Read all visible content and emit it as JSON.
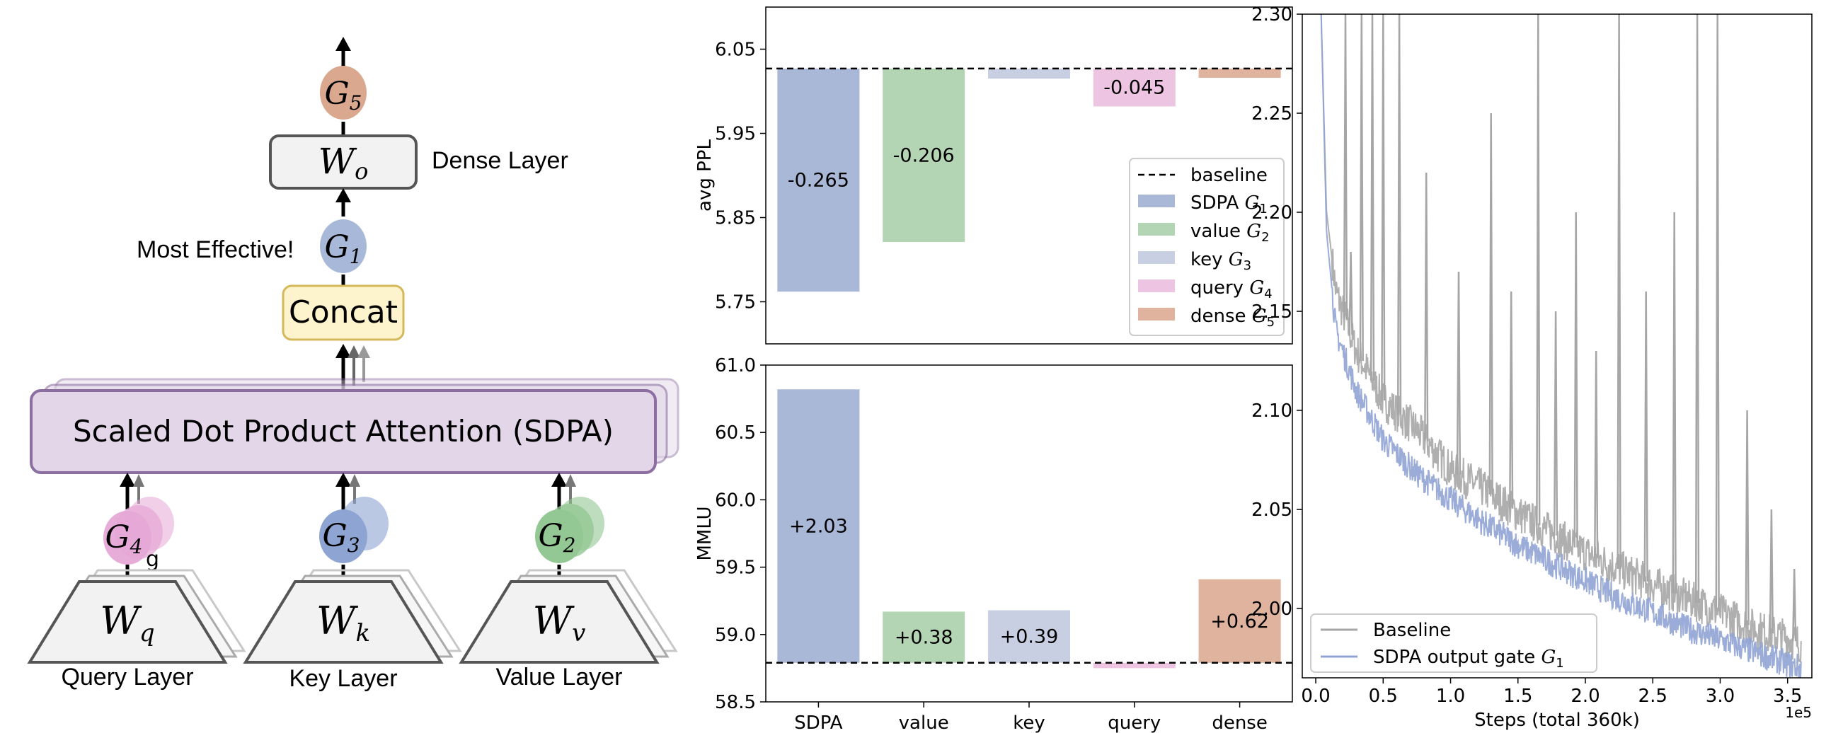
{
  "diagram": {
    "dense_layer_label": "Dense Layer",
    "most_effective_label": "Most Effective!",
    "concat_label": "Concat",
    "sdpa_label": "Scaled Dot Product Attention (SDPA)",
    "query_layer_label": "Query Layer",
    "key_layer_label": "Key Layer",
    "value_layer_label": "Value Layer",
    "stray_label": "g",
    "gates": [
      {
        "symbol": "G",
        "sub": "5",
        "color": "#d9a88e"
      },
      {
        "symbol": "G",
        "sub": "1",
        "color": "#a8b8d8"
      },
      {
        "symbol": "G",
        "sub": "4",
        "color": "#e6a8d6"
      },
      {
        "symbol": "G",
        "sub": "3",
        "color": "#8ea4d2"
      },
      {
        "symbol": "G",
        "sub": "2",
        "color": "#93c793"
      }
    ],
    "weights": [
      {
        "symbol": "W",
        "sub": "o"
      },
      {
        "symbol": "W",
        "sub": "q"
      },
      {
        "symbol": "W",
        "sub": "k"
      },
      {
        "symbol": "W",
        "sub": "v"
      }
    ],
    "colors": {
      "concat_fill": "#fdf3cc",
      "concat_stroke": "#d4b85a",
      "sdpa_fill": "#e2d6e8",
      "sdpa_stroke": "#8c6fa0",
      "layer_fill": "#f2f2f2",
      "layer_stroke": "#555555"
    }
  },
  "chart_data": [
    {
      "type": "bar",
      "categories": [
        "SDPA",
        "value",
        "key",
        "query",
        "dense"
      ],
      "baseline": 6.027,
      "deltas": [
        -0.265,
        -0.206,
        -0.012,
        -0.045,
        -0.011
      ],
      "labels": [
        "-0.265",
        "-0.206",
        "",
        "-0.045",
        ""
      ],
      "colors": [
        "#a9b8d7",
        "#b3d5b3",
        "#c9cfe3",
        "#edc5e3",
        "#dfb39e"
      ],
      "ylabel": "avg PPL",
      "ylim": [
        5.7,
        6.1
      ],
      "yticks": [
        "5.75",
        "5.85",
        "5.95",
        "6.05"
      ],
      "ytick_values": [
        5.75,
        5.85,
        5.95,
        6.05
      ],
      "legend": {
        "position": "center-right",
        "items": [
          {
            "name": "baseline",
            "type": "dashed"
          },
          {
            "name": "SDPA",
            "sub": "1",
            "color": "#a9b8d7"
          },
          {
            "name": "value",
            "sub": "2",
            "color": "#b3d5b3"
          },
          {
            "name": "key",
            "sub": "3",
            "color": "#c9cfe3"
          },
          {
            "name": "query",
            "sub": "4",
            "color": "#edc5e3"
          },
          {
            "name": "dense",
            "sub": "5",
            "color": "#dfb39e"
          }
        ]
      }
    },
    {
      "type": "bar",
      "categories": [
        "SDPA",
        "value",
        "key",
        "query",
        "dense"
      ],
      "baseline": 58.79,
      "deltas": [
        2.03,
        0.38,
        0.39,
        -0.04,
        0.62
      ],
      "labels": [
        "+2.03",
        "+0.38",
        "+0.39",
        "",
        "+0.62"
      ],
      "colors": [
        "#a9b8d7",
        "#b3d5b3",
        "#c9cfe3",
        "#edc5e3",
        "#dfb39e"
      ],
      "ylabel": "MMLU",
      "ylim": [
        58.5,
        61.0
      ],
      "yticks": [
        "58.5",
        "59.0",
        "59.5",
        "60.0",
        "60.5",
        "61.0"
      ],
      "ytick_values": [
        58.5,
        59.0,
        59.5,
        60.0,
        60.5,
        61.0
      ]
    },
    {
      "type": "line",
      "xlabel": "Steps (total 360k)",
      "x_multiplier_label": "1e5",
      "xlim": [
        -0.1,
        3.68
      ],
      "ylim": [
        1.965,
        2.3
      ],
      "xticks": [
        "0.0",
        "0.5",
        "1.0",
        "1.5",
        "2.0",
        "2.5",
        "3.0",
        "3.5"
      ],
      "xtick_values": [
        0.0,
        0.5,
        1.0,
        1.5,
        2.0,
        2.5,
        3.0,
        3.5
      ],
      "yticks": [
        "2.00",
        "2.05",
        "2.10",
        "2.15",
        "2.20",
        "2.25",
        "2.30"
      ],
      "ytick_values": [
        2.0,
        2.05,
        2.1,
        2.15,
        2.2,
        2.25,
        2.3
      ],
      "series": [
        {
          "name": "Baseline",
          "color": "#a6a6a6",
          "points": [
            [
              0.04,
              2.3
            ],
            [
              0.08,
              2.2
            ],
            [
              0.15,
              2.16
            ],
            [
              0.3,
              2.13
            ],
            [
              0.5,
              2.105
            ],
            [
              0.75,
              2.09
            ],
            [
              1.0,
              2.07
            ],
            [
              1.25,
              2.06
            ],
            [
              1.5,
              2.048
            ],
            [
              1.75,
              2.038
            ],
            [
              2.0,
              2.028
            ],
            [
              2.25,
              2.02
            ],
            [
              2.5,
              2.012
            ],
            [
              2.75,
              2.005
            ],
            [
              3.0,
              1.998
            ],
            [
              3.25,
              1.99
            ],
            [
              3.5,
              1.985
            ],
            [
              3.6,
              1.982
            ]
          ],
          "spikes": [
            [
              0.22,
              2.3
            ],
            [
              0.26,
              2.18
            ],
            [
              0.34,
              2.3
            ],
            [
              0.42,
              2.3
            ],
            [
              0.5,
              2.3
            ],
            [
              0.62,
              2.3
            ],
            [
              0.82,
              2.22
            ],
            [
              1.06,
              2.17
            ],
            [
              1.3,
              2.25
            ],
            [
              1.45,
              2.16
            ],
            [
              1.65,
              2.3
            ],
            [
              1.78,
              2.15
            ],
            [
              1.93,
              2.2
            ],
            [
              2.08,
              2.13
            ],
            [
              2.25,
              2.3
            ],
            [
              2.45,
              2.16
            ],
            [
              2.66,
              2.2
            ],
            [
              2.83,
              2.3
            ],
            [
              2.98,
              2.3
            ],
            [
              3.2,
              2.1
            ],
            [
              3.38,
              2.05
            ],
            [
              3.55,
              2.02
            ]
          ]
        },
        {
          "name": "SDPA output gate",
          "sub": "1",
          "color": "#8fa3d3",
          "points": [
            [
              0.04,
              2.3
            ],
            [
              0.08,
              2.19
            ],
            [
              0.15,
              2.14
            ],
            [
              0.3,
              2.11
            ],
            [
              0.5,
              2.085
            ],
            [
              0.75,
              2.068
            ],
            [
              1.0,
              2.055
            ],
            [
              1.25,
              2.043
            ],
            [
              1.5,
              2.032
            ],
            [
              1.75,
              2.023
            ],
            [
              2.0,
              2.014
            ],
            [
              2.25,
              2.005
            ],
            [
              2.5,
              1.998
            ],
            [
              2.75,
              1.99
            ],
            [
              3.0,
              1.984
            ],
            [
              3.25,
              1.978
            ],
            [
              3.5,
              1.972
            ],
            [
              3.6,
              1.97
            ]
          ]
        }
      ],
      "legend": {
        "position": "lower-left"
      }
    }
  ]
}
